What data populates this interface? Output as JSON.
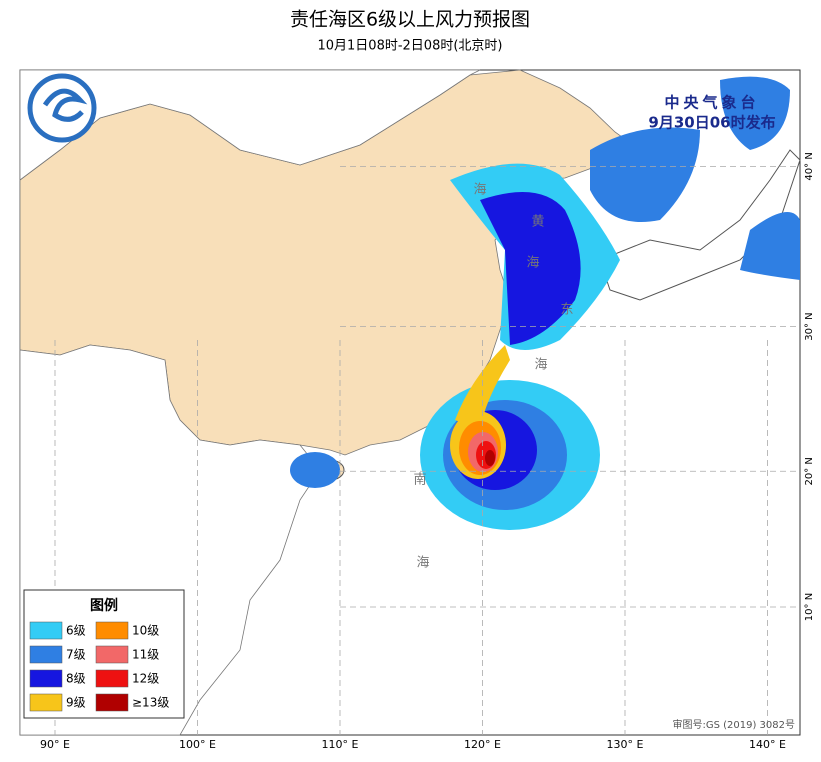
{
  "header": {
    "title": "责任海区6级以上风力预报图",
    "subtitle": "10月1日08时-2日08时(北京时)"
  },
  "issuer": {
    "name": "中央气象台",
    "time": "9月30日06时发布"
  },
  "sea_labels": [
    "海",
    "黄",
    "海",
    "东",
    "海",
    "南",
    "海"
  ],
  "longitudes": [
    {
      "value": 90,
      "label": "90° E"
    },
    {
      "value": 100,
      "label": "100° E"
    },
    {
      "value": 110,
      "label": "110° E"
    },
    {
      "value": 120,
      "label": "120° E"
    },
    {
      "value": 130,
      "label": "130° E"
    },
    {
      "value": 140,
      "label": "140° E"
    }
  ],
  "latitudes": [
    {
      "value": 10,
      "label": "10° N"
    },
    {
      "value": 20,
      "label": "20° N"
    },
    {
      "value": 30,
      "label": "30° N"
    },
    {
      "value": 40,
      "label": "40° N"
    }
  ],
  "legend": {
    "title": "图例",
    "items": [
      {
        "label": "6级",
        "color": "#33ccf5"
      },
      {
        "label": "10级",
        "color": "#ff8c00"
      },
      {
        "label": "7级",
        "color": "#2f7fe3"
      },
      {
        "label": "11级",
        "color": "#f26868"
      },
      {
        "label": "8级",
        "color": "#1616e0"
      },
      {
        "label": "12级",
        "color": "#ee1111"
      },
      {
        "label": "9级",
        "color": "#f7c51a"
      },
      {
        "label": "≥13级",
        "color": "#b00000"
      }
    ]
  },
  "credit": "审图号:GS (2019) 3082号"
}
